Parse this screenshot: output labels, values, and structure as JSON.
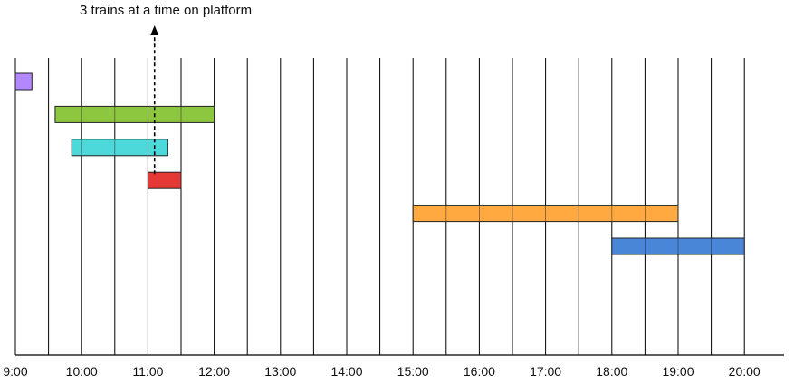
{
  "chart_data": {
    "type": "gantt",
    "title": "",
    "xlabel": "",
    "ylabel": "",
    "grid": true,
    "x_tick_labels": [
      "9:00",
      "10:00",
      "11:00",
      "12:00",
      "13:00",
      "14:00",
      "15:00",
      "16:00",
      "17:00",
      "18:00",
      "19:00",
      "20:00"
    ],
    "gridline_hours": [
      9,
      9.5,
      10,
      10.5,
      11,
      11.5,
      12,
      12.5,
      13,
      13.5,
      14,
      14.5,
      15,
      15.5,
      16,
      16.5,
      17,
      17.5,
      18,
      18.5,
      19,
      19.5,
      20
    ],
    "bars": [
      {
        "row": 0,
        "start": 9.0,
        "end": 9.25,
        "color": "#b388ff"
      },
      {
        "row": 1,
        "start": 9.6,
        "end": 12.0,
        "color": "#8dc63f"
      },
      {
        "row": 2,
        "start": 9.85,
        "end": 11.3,
        "color": "#4dd9d9"
      },
      {
        "row": 3,
        "start": 11.0,
        "end": 11.5,
        "color": "#e53935"
      },
      {
        "row": 4,
        "start": 15.0,
        "end": 19.0,
        "color": "#ffa940"
      },
      {
        "row": 5,
        "start": 18.0,
        "end": 20.0,
        "color": "#4a86d8"
      }
    ],
    "annotation": {
      "text": "3 trains at a time on platform",
      "x": 11.1
    }
  }
}
